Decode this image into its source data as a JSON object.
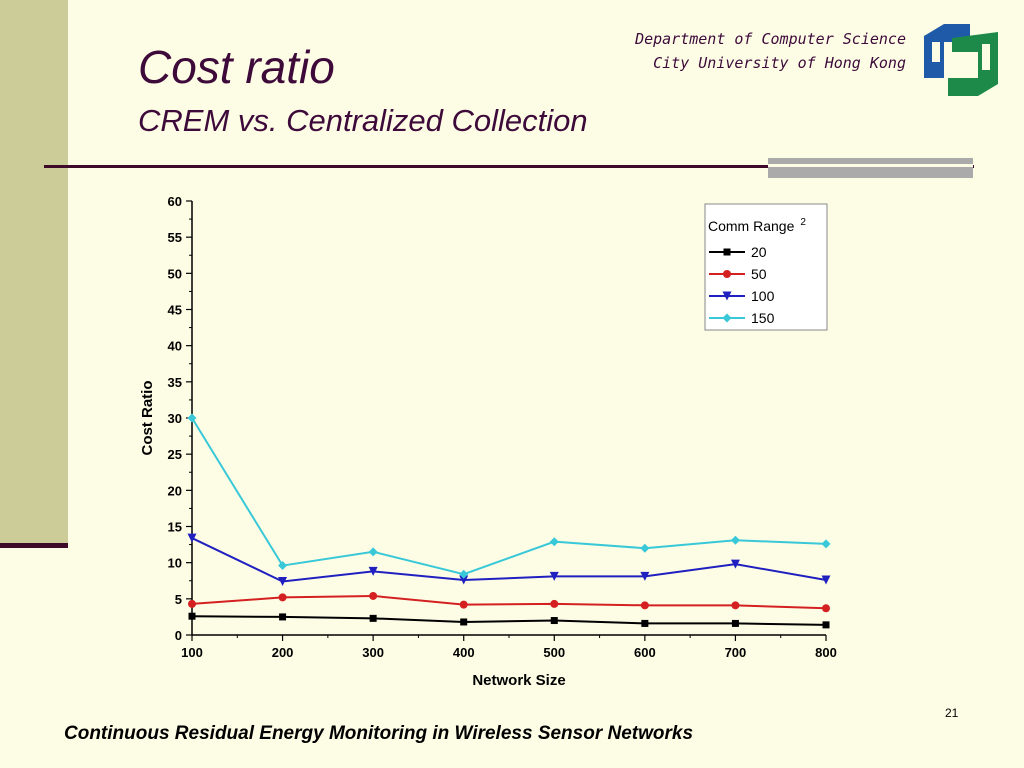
{
  "header": {
    "title": "Cost ratio",
    "subtitle": "CREM vs. Centralized Collection",
    "department": "Department of Computer Science",
    "university": "City University of Hong Kong"
  },
  "footer": {
    "text": "Continuous Residual Energy Monitoring in Wireless Sensor Networks",
    "page_number": "21"
  },
  "colors": {
    "background": "#fdfde6",
    "sidebar": "#cccc99",
    "title": "#3d0a3a",
    "rule": "#3d0a2a",
    "logo_blue": "#1e5aa8",
    "logo_green": "#1e8a4a"
  },
  "chart_data": {
    "type": "line",
    "title": "",
    "xlabel": "Network Size",
    "ylabel": "Cost Ratio",
    "x": [
      100,
      200,
      300,
      400,
      500,
      600,
      700,
      800
    ],
    "xlim": [
      100,
      800
    ],
    "ylim": [
      0,
      60
    ],
    "x_ticks": [
      "100",
      "200",
      "300",
      "400",
      "500",
      "600",
      "700",
      "800"
    ],
    "y_ticks": [
      "0",
      "5",
      "10",
      "15",
      "20",
      "25",
      "30",
      "35",
      "40",
      "45",
      "50",
      "55",
      "60"
    ],
    "legend": {
      "title": "Comm Range",
      "title_superscript": "2",
      "placement": "top-right"
    },
    "grid": false,
    "series": [
      {
        "name": "20",
        "color": "#000000",
        "marker": "square",
        "values": [
          2.6,
          2.5,
          2.3,
          1.8,
          2.0,
          1.6,
          1.6,
          1.4
        ]
      },
      {
        "name": "50",
        "color": "#d42020",
        "marker": "circle",
        "values": [
          4.3,
          5.2,
          5.4,
          4.2,
          4.3,
          4.1,
          4.1,
          3.7
        ]
      },
      {
        "name": "100",
        "color": "#2020c0",
        "marker": "triangle-down",
        "values": [
          13.4,
          7.4,
          8.8,
          7.6,
          8.1,
          8.1,
          9.8,
          7.6
        ]
      },
      {
        "name": "150",
        "color": "#38c8d8",
        "marker": "diamond",
        "values": [
          30.0,
          9.6,
          11.5,
          8.4,
          12.9,
          12.0,
          13.1,
          12.6
        ]
      }
    ]
  }
}
